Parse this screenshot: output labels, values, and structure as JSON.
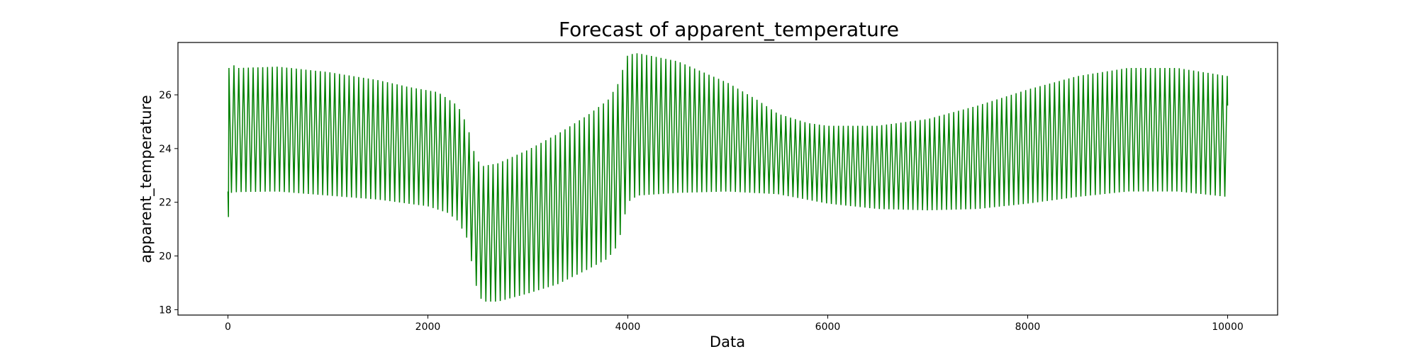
{
  "chart_data": {
    "type": "line",
    "title": "Forecast of apparent_temperature",
    "xlabel": "Data",
    "ylabel": "apparent_temperature",
    "xlim": [
      -500,
      10500
    ],
    "ylim": [
      17.8,
      27.95
    ],
    "x_ticks": [
      0,
      2000,
      4000,
      6000,
      8000,
      10000
    ],
    "y_ticks": [
      18,
      20,
      22,
      24,
      26
    ],
    "x_tick_labels": [
      "0",
      "2000",
      "4000",
      "6000",
      "8000",
      "10000"
    ],
    "y_tick_labels": [
      "18",
      "20",
      "22",
      "24",
      "26"
    ],
    "grid": false,
    "legend": "none",
    "line_color": "#008000",
    "series": [
      {
        "oscillation_period_x": 48,
        "upper_envelope": [
          [
            0,
            26.95
          ],
          [
            100,
            27.0
          ],
          [
            500,
            27.05
          ],
          [
            1000,
            26.85
          ],
          [
            1500,
            26.55
          ],
          [
            1800,
            26.3
          ],
          [
            2100,
            26.1
          ],
          [
            2300,
            25.6
          ],
          [
            2400,
            24.8
          ],
          [
            2450,
            24.0
          ],
          [
            2500,
            23.55
          ],
          [
            2550,
            23.35
          ],
          [
            2700,
            23.45
          ],
          [
            3000,
            23.95
          ],
          [
            3300,
            24.55
          ],
          [
            3600,
            25.25
          ],
          [
            3800,
            25.8
          ],
          [
            3900,
            26.4
          ],
          [
            4000,
            27.5
          ],
          [
            4100,
            27.55
          ],
          [
            4500,
            27.25
          ],
          [
            5000,
            26.45
          ],
          [
            5300,
            25.8
          ],
          [
            5500,
            25.3
          ],
          [
            5800,
            24.95
          ],
          [
            6000,
            24.85
          ],
          [
            6500,
            24.85
          ],
          [
            7000,
            25.1
          ],
          [
            7500,
            25.6
          ],
          [
            8000,
            26.2
          ],
          [
            8500,
            26.7
          ],
          [
            9000,
            27.0
          ],
          [
            9500,
            27.0
          ],
          [
            10000,
            26.7
          ]
        ],
        "lower_envelope": [
          [
            0,
            22.35
          ],
          [
            100,
            22.38
          ],
          [
            500,
            22.4
          ],
          [
            1000,
            22.25
          ],
          [
            1500,
            22.1
          ],
          [
            2000,
            21.85
          ],
          [
            2200,
            21.6
          ],
          [
            2300,
            21.3
          ],
          [
            2400,
            20.6
          ],
          [
            2450,
            19.5
          ],
          [
            2500,
            18.6
          ],
          [
            2550,
            18.3
          ],
          [
            2700,
            18.3
          ],
          [
            3000,
            18.6
          ],
          [
            3300,
            18.95
          ],
          [
            3600,
            19.5
          ],
          [
            3800,
            19.9
          ],
          [
            3900,
            20.4
          ],
          [
            4000,
            22.0
          ],
          [
            4100,
            22.25
          ],
          [
            4500,
            22.35
          ],
          [
            5000,
            22.4
          ],
          [
            5500,
            22.3
          ],
          [
            6000,
            21.95
          ],
          [
            6500,
            21.75
          ],
          [
            7000,
            21.7
          ],
          [
            7500,
            21.75
          ],
          [
            8000,
            21.95
          ],
          [
            8500,
            22.2
          ],
          [
            9000,
            22.4
          ],
          [
            9500,
            22.4
          ],
          [
            10000,
            22.2
          ]
        ],
        "initial_points": [
          [
            0,
            22.4
          ],
          [
            5,
            21.45
          ],
          [
            10,
            27.0
          ],
          [
            35,
            22.35
          ],
          [
            60,
            27.1
          ]
        ],
        "end_value": [
          10000,
          25.6
        ]
      }
    ]
  }
}
